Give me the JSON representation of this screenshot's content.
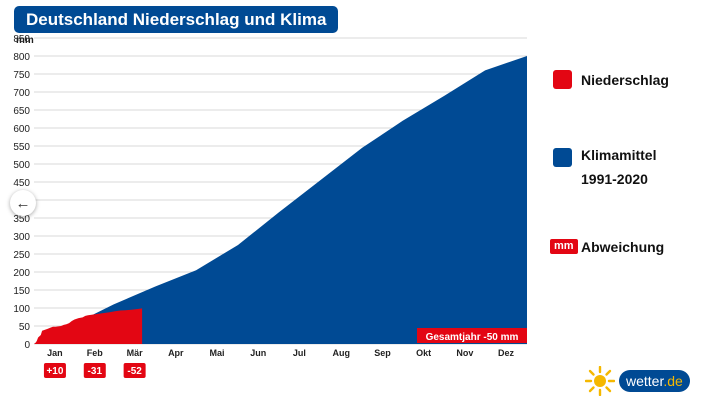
{
  "title": "Deutschland Niederschlag und Klima",
  "chart_data": {
    "type": "area",
    "y_unit": "mm",
    "ylim": [
      0,
      850
    ],
    "yticks": [
      0,
      50,
      100,
      150,
      200,
      250,
      300,
      350,
      400,
      450,
      500,
      550,
      600,
      650,
      700,
      750,
      800,
      850
    ],
    "months": [
      "Jan",
      "Feb",
      "Mär",
      "Apr",
      "Mai",
      "Jun",
      "Jul",
      "Aug",
      "Sep",
      "Okt",
      "Nov",
      "Dez"
    ],
    "grid": true,
    "series": [
      {
        "name": "Klimamittel 1991-2020",
        "color": "#004a94",
        "x_day": [
          0,
          31,
          59,
          90,
          120,
          151,
          181,
          212,
          243,
          273,
          304,
          334,
          365
        ],
        "cumulative_mm": [
          0,
          58,
          110,
          160,
          205,
          275,
          365,
          455,
          545,
          620,
          690,
          760,
          800
        ]
      },
      {
        "name": "Niederschlag",
        "color": "#e30613",
        "x_day": [
          0,
          1,
          2,
          3,
          5,
          6,
          10,
          12,
          14,
          16,
          20,
          22,
          24,
          26,
          28,
          30,
          33,
          36,
          38,
          40,
          44,
          48,
          52,
          56,
          60,
          64,
          68,
          72,
          76,
          80
        ],
        "cumulative_mm": [
          0,
          3,
          8,
          18,
          25,
          37,
          42,
          45,
          48,
          48,
          50,
          53,
          55,
          58,
          64,
          68,
          72,
          74,
          78,
          80,
          82,
          84,
          86,
          88,
          91,
          93,
          94,
          95,
          97,
          99
        ]
      }
    ],
    "deviations": [
      "+10",
      "-31",
      "-52"
    ],
    "total_label": "Gesamtjahr -50 mm"
  },
  "legend": {
    "niederschlag": "Niederschlag",
    "klimamittel_line1": "Klimamittel",
    "klimamittel_line2": "1991-2020",
    "abweichung_badge": "mm",
    "abweichung": "Abweichung"
  },
  "colors": {
    "precip": "#e30613",
    "climate": "#004a94",
    "grid": "#d8d8d8",
    "sun": "#f5b800"
  },
  "logo": {
    "text": "wetter",
    "suffix": ".de"
  },
  "icons": {
    "back": "arrow-left-icon",
    "sun": "sun-icon"
  }
}
